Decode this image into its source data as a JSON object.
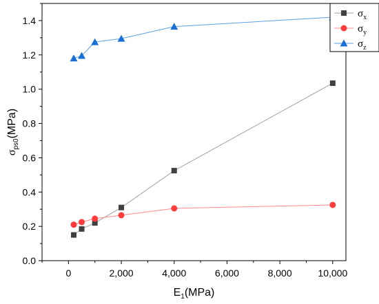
{
  "chart_data": {
    "type": "line",
    "xlabel": {
      "main": "E",
      "sub": "1",
      "unit": "(MPa)"
    },
    "ylabel": {
      "main": "σ",
      "sub": "ps0",
      "unit": "(MPa)"
    },
    "xlim": [
      -1000,
      10500
    ],
    "ylim": [
      0,
      1.5
    ],
    "x_ticks": [
      0,
      2000,
      4000,
      6000,
      8000,
      10000
    ],
    "x_tick_labels": [
      "0",
      "2,000",
      "4,000",
      "6,000",
      "8,000",
      "10,000"
    ],
    "y_ticks": [
      0,
      0.2,
      0.4,
      0.6,
      0.8,
      1.0,
      1.2,
      1.4
    ],
    "y_tick_labels": [
      "0.0",
      "0.2",
      "0.4",
      "0.6",
      "0.8",
      "1.0",
      "1.2",
      "1.4"
    ],
    "grid": false,
    "legend_position": "top-right",
    "series": [
      {
        "name": "σx",
        "label_main": "σ",
        "label_sub": "x",
        "marker": "square",
        "color": "#404040",
        "line_color": "#a0a0a0",
        "x": [
          200,
          500,
          1000,
          2000,
          4000,
          10000
        ],
        "y": [
          0.15,
          0.185,
          0.22,
          0.31,
          0.525,
          1.035
        ]
      },
      {
        "name": "σy",
        "label_main": "σ",
        "label_sub": "y",
        "marker": "circle",
        "color": "#ff3b3b",
        "line_color": "#ff8a8a",
        "x": [
          200,
          500,
          1000,
          2000,
          4000,
          10000
        ],
        "y": [
          0.21,
          0.225,
          0.245,
          0.265,
          0.305,
          0.325
        ]
      },
      {
        "name": "σz",
        "label_main": "σ",
        "label_sub": "z",
        "marker": "triangle",
        "color": "#1a6fd6",
        "line_color": "#5aa0e6",
        "x": [
          200,
          500,
          1000,
          2000,
          4000,
          10000
        ],
        "y": [
          1.18,
          1.195,
          1.275,
          1.295,
          1.365,
          1.42
        ]
      }
    ]
  }
}
